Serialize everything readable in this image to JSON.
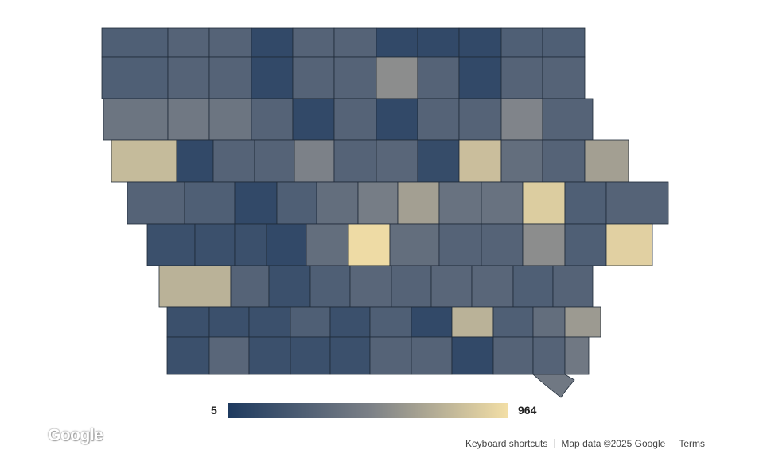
{
  "legend": {
    "min": "5",
    "max": "964",
    "color_low": "#1e3a5f",
    "color_high": "#f3dfa6"
  },
  "attribution": {
    "keyboard_shortcuts": "Keyboard shortcuts",
    "map_data": "Map data ©2025 Google",
    "terms": "Terms"
  },
  "logo": "Google",
  "county_levels": [
    [
      0.25,
      0.28,
      0.28,
      0.1,
      0.28,
      0.28,
      0.1,
      0.1,
      0.1,
      0.25,
      0.25
    ],
    [
      0.25,
      0.28,
      0.28,
      0.1,
      0.28,
      0.28,
      0.55,
      0.28,
      0.1,
      0.28,
      0.28
    ],
    [
      0.4,
      0.42,
      0.4,
      0.28,
      0.1,
      0.28,
      0.1,
      0.28,
      0.28,
      0.5,
      0.28
    ],
    [
      0.8,
      0.1,
      0.28,
      0.28,
      0.48,
      0.28,
      0.3,
      0.12,
      0.82,
      0.35,
      0.28,
      0.65
    ],
    [
      0.28,
      0.25,
      0.1,
      0.25,
      0.35,
      0.45,
      0.65,
      0.38,
      0.38,
      0.9,
      0.25,
      0.28
    ],
    [
      0.15,
      0.15,
      0.15,
      0.1,
      0.35,
      0.98,
      0.35,
      0.28,
      0.28,
      0.55,
      0.25,
      0.92
    ],
    [
      0.75,
      0.28,
      0.15,
      0.25,
      0.3,
      0.28,
      0.3,
      0.3,
      0.25,
      0.28,
      0.3
    ],
    [
      0.15,
      0.15,
      0.15,
      0.25,
      0.15,
      0.25,
      0.1,
      0.75,
      0.25,
      0.35,
      0.62
    ],
    [
      0.15,
      0.3,
      0.15,
      0.15,
      0.15,
      0.28,
      0.28,
      0.1,
      0.28,
      0.28,
      0.42
    ]
  ]
}
